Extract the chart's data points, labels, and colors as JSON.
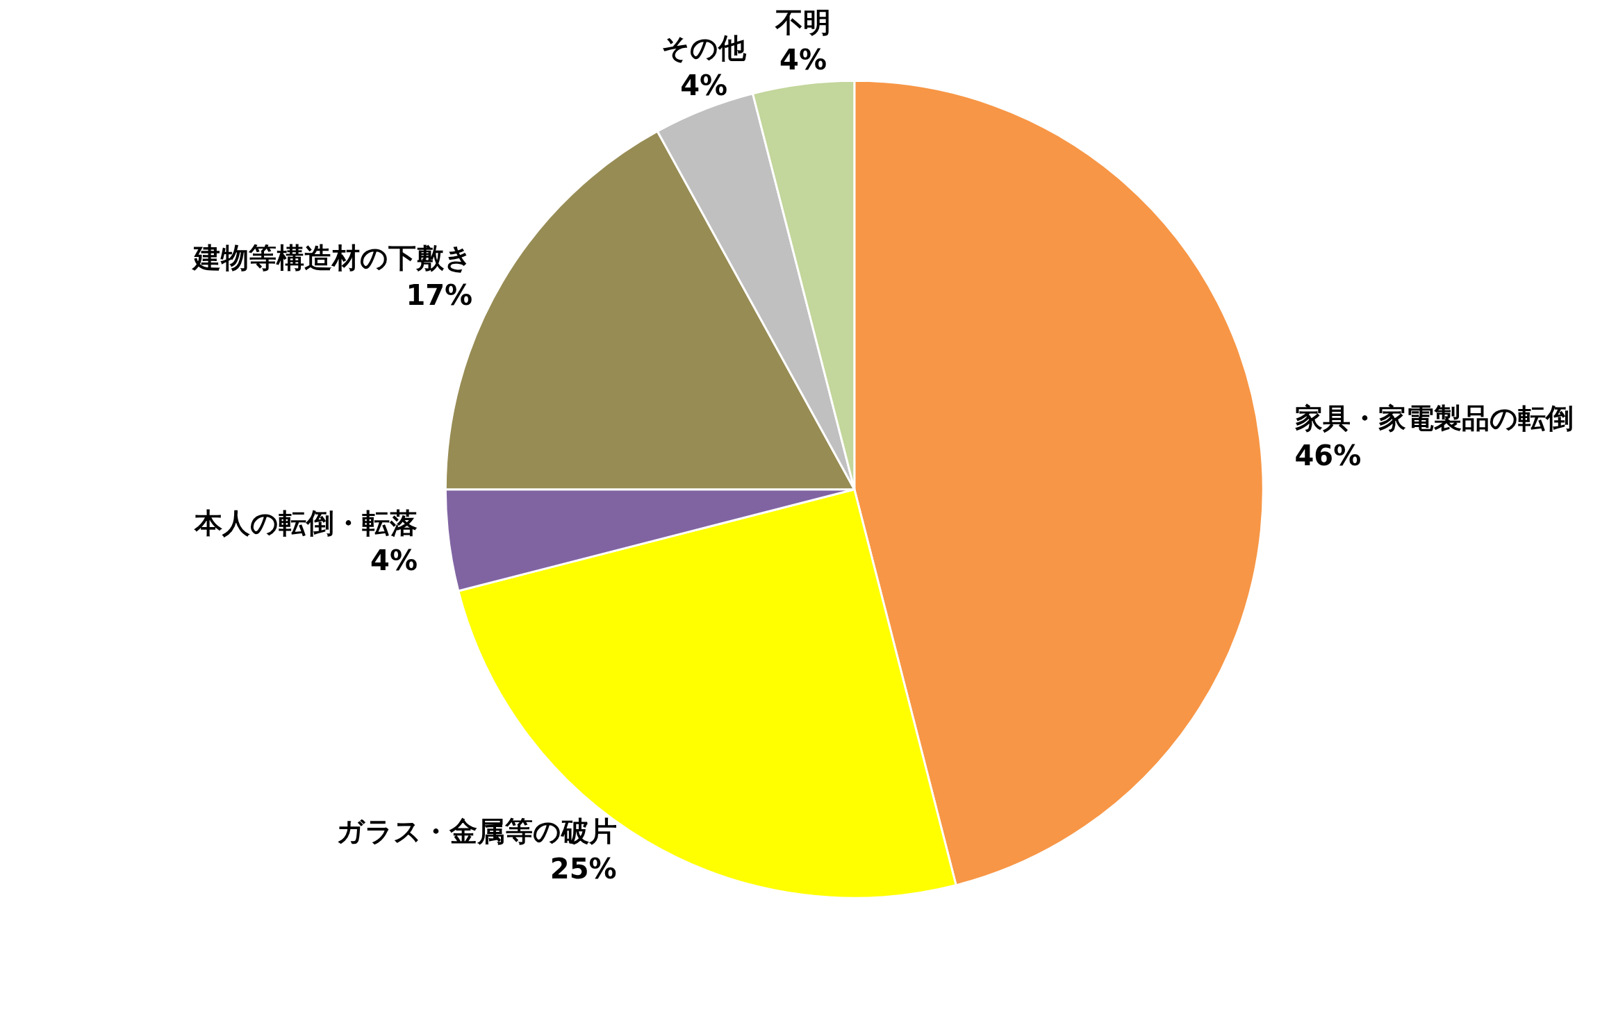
{
  "chart_data": {
    "type": "pie",
    "categories": [
      "家具・家電製品の転倒",
      "ガラス・金属等の破片",
      "本人の転倒・転落",
      "建物等構造材の下敷き",
      "その他",
      "不明"
    ],
    "values": [
      46,
      25,
      4,
      17,
      4,
      4
    ],
    "colors": [
      "#f79646",
      "#ffff00",
      "#8064a2",
      "#978c54",
      "#c0c0c0",
      "#c3d69b"
    ],
    "value_labels": [
      "46%",
      "25%",
      "4%",
      "17%",
      "4%",
      "4%"
    ],
    "legend": false
  }
}
